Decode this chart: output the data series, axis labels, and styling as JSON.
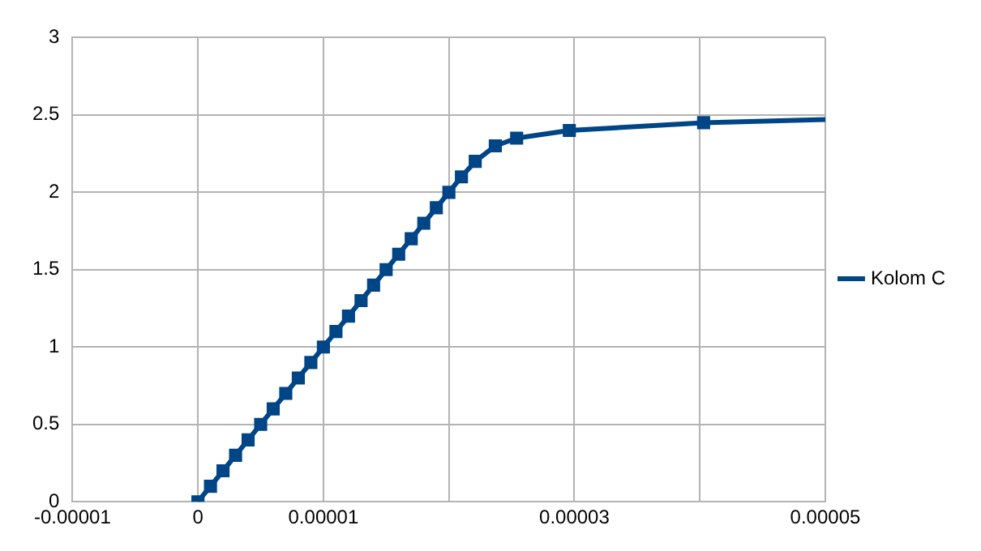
{
  "chart_data": {
    "type": "line",
    "x": [
      0,
      1e-06,
      2e-06,
      3e-06,
      4e-06,
      5e-06,
      6e-06,
      7e-06,
      8e-06,
      9e-06,
      1e-05,
      1.1e-05,
      1.2e-05,
      1.3e-05,
      1.4e-05,
      1.5e-05,
      1.6e-05,
      1.7e-05,
      1.8e-05,
      1.9e-05,
      2e-05,
      2.1e-05,
      2.21e-05,
      2.37e-05,
      2.54e-05,
      2.96e-05,
      4.03e-05,
      5e-05
    ],
    "series": [
      {
        "name": "Kolom C",
        "color": "#004586",
        "values": [
          0,
          0.1,
          0.2,
          0.3,
          0.4,
          0.5,
          0.6,
          0.7,
          0.8,
          0.9,
          1,
          1.1,
          1.2,
          1.3,
          1.4,
          1.5,
          1.6,
          1.7,
          1.8,
          1.9,
          2,
          2.1,
          2.2,
          2.3,
          2.35,
          2.4,
          2.45,
          2.47
        ]
      }
    ],
    "xlim": [
      -1e-05,
      5e-05
    ],
    "xticks": [
      {
        "value": -1e-05,
        "label": "-0.00001"
      },
      0,
      {
        "value": 1e-05,
        "label": "0.00001"
      },
      {
        "value": 2e-05,
        "label": null
      },
      {
        "value": 3e-05,
        "label": "0.00003"
      },
      {
        "value": 4e-05,
        "label": null
      },
      {
        "value": 5e-05,
        "label": "0.00005"
      }
    ],
    "ylim": [
      0,
      3
    ],
    "yticks": [
      0,
      0.5,
      1,
      1.5,
      2,
      2.5,
      3
    ],
    "grid": true,
    "legend": "right",
    "marker": "square",
    "line_style": "solid"
  }
}
